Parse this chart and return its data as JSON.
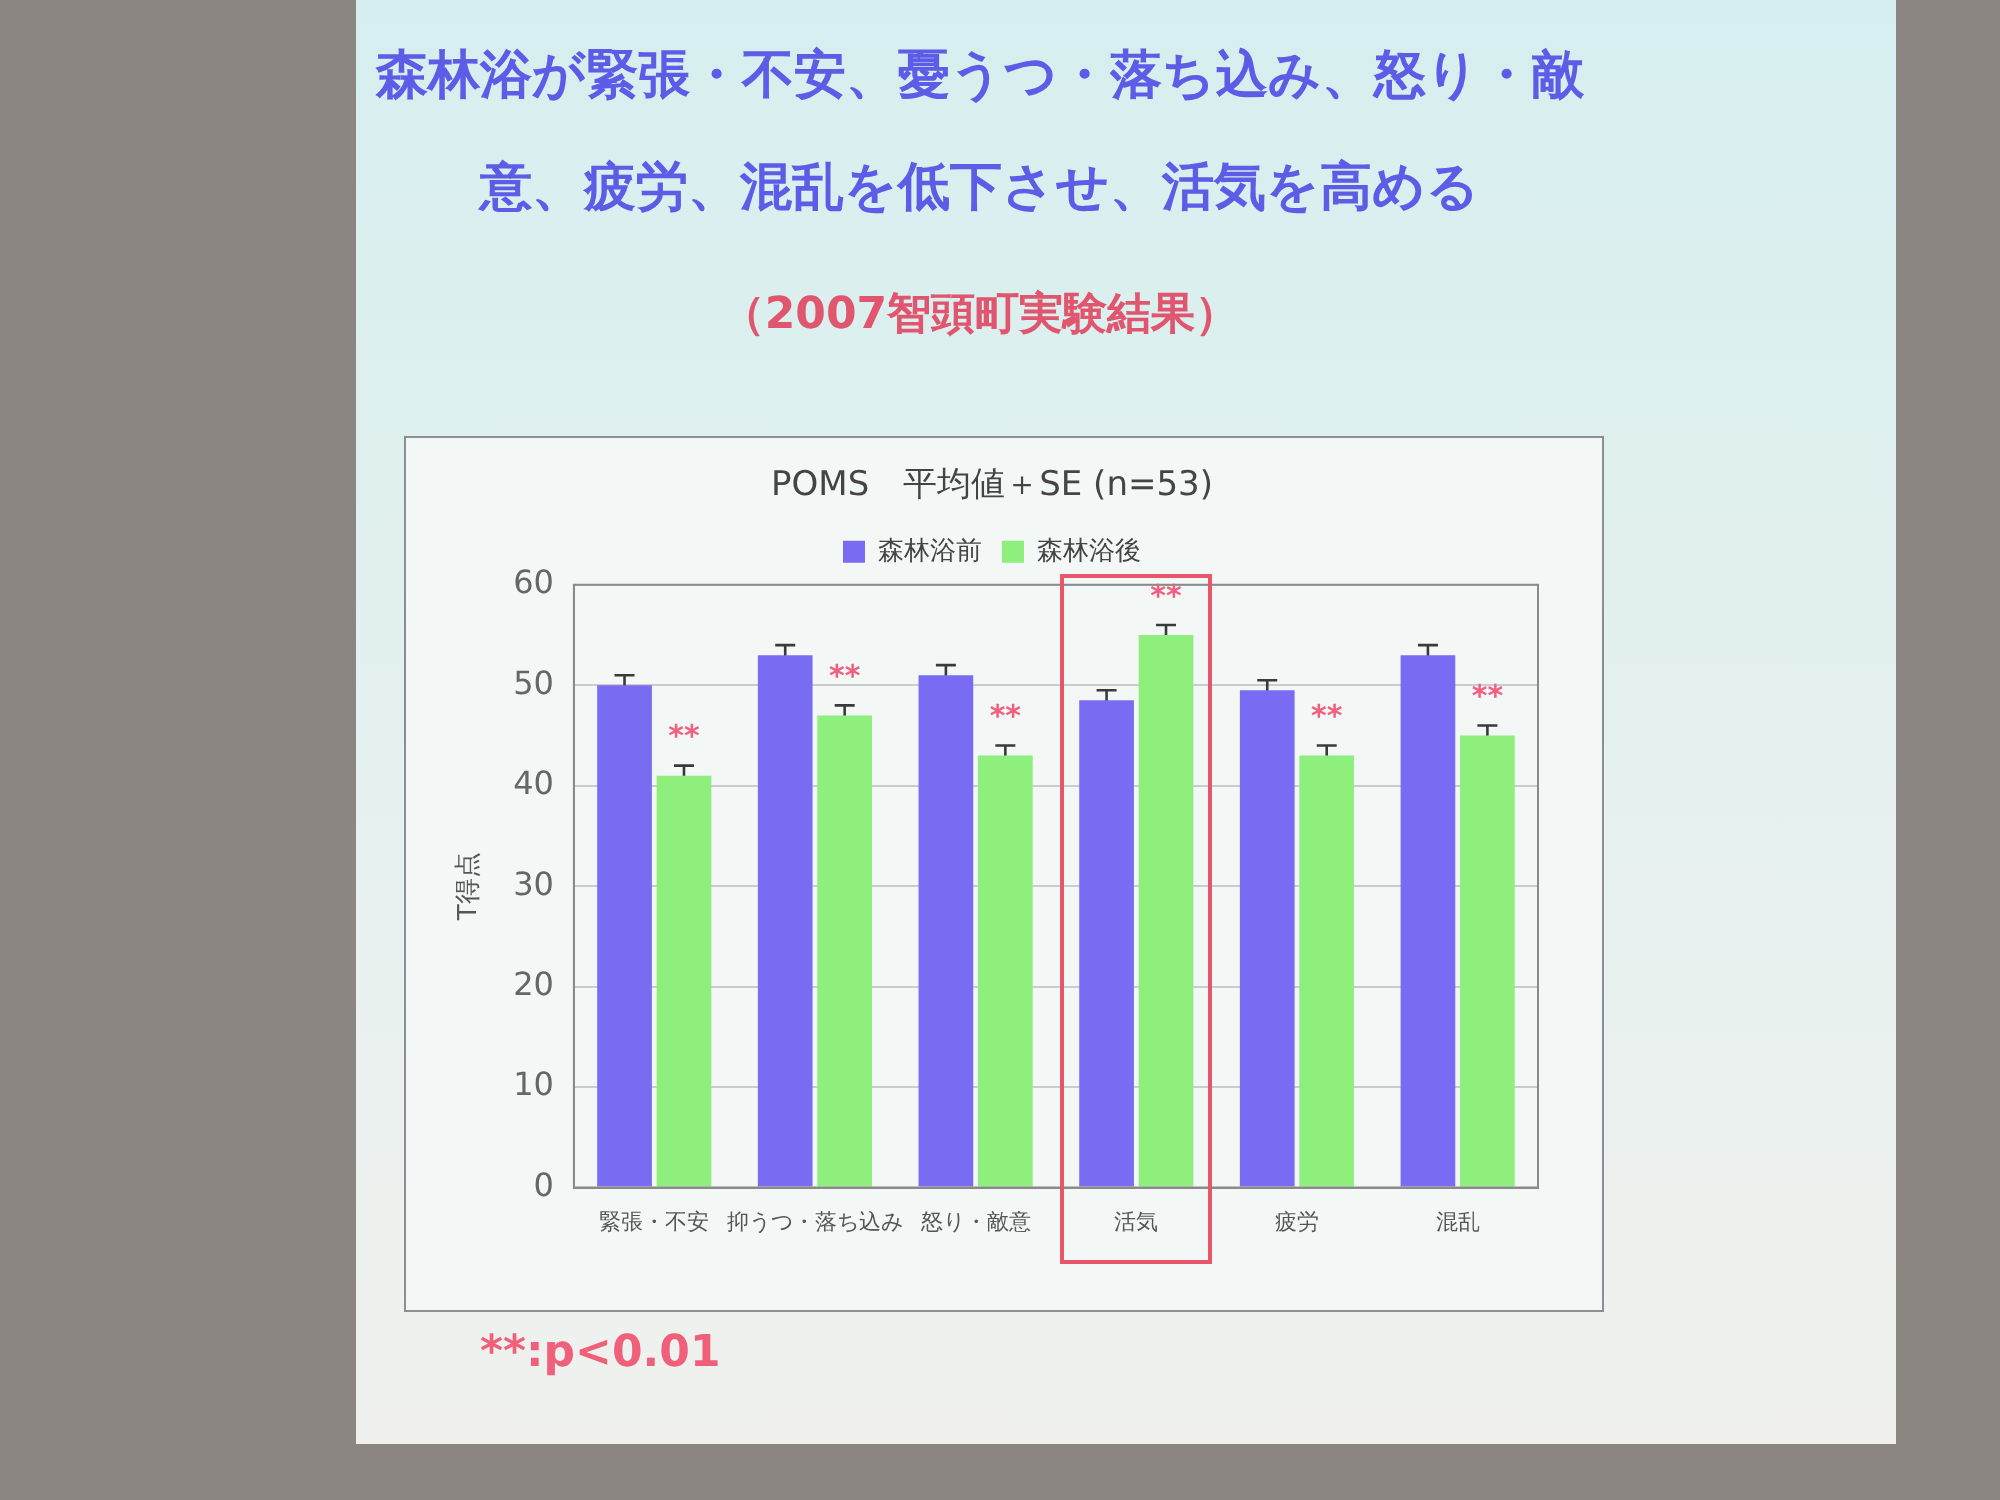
{
  "chart_data": {
    "type": "bar",
    "title": "森林浴が緊張・不安、憂うつ・落ち込み、怒り・敵意、疲労、混乱を低下させ、活気を高める",
    "subtitle": "（2007智頭町実験結果）",
    "ylabel": "T得点",
    "categories": [
      "緊張・不安",
      "抑うつ・落ち込み",
      "怒り・敵意",
      "活気",
      "疲労",
      "混乱"
    ],
    "series": [
      {
        "name": "森林浴前",
        "color": "#7a6cf2",
        "values": [
          50,
          53,
          51,
          48.5,
          49.5,
          53
        ],
        "errors": [
          1,
          1,
          1,
          1,
          1,
          1
        ]
      },
      {
        "name": "森林浴後",
        "color": "#8eef7c",
        "values": [
          41,
          47,
          43,
          55,
          43,
          45
        ],
        "errors": [
          1,
          1,
          1,
          1,
          1,
          1
        ]
      }
    ],
    "ylim": [
      0,
      60
    ],
    "yticks": [
      0,
      10,
      20,
      30,
      40,
      50,
      60
    ],
    "grid": "y",
    "legend": "top",
    "annotations": [
      "POMS　平均値＋SE (n=53)",
      {
        "text": "**",
        "x": "緊張・不安",
        "y": 41
      },
      {
        "text": "**",
        "x": "抑うつ・落ち込み",
        "y": 47
      },
      {
        "text": "**",
        "x": "怒り・敵意",
        "y": 43
      },
      {
        "text": "**",
        "x": "活気",
        "y": 55
      },
      {
        "text": "**",
        "x": "疲労",
        "y": 43
      },
      {
        "text": "**",
        "x": "混乱",
        "y": 45
      },
      "**:p<0.01"
    ]
  }
}
